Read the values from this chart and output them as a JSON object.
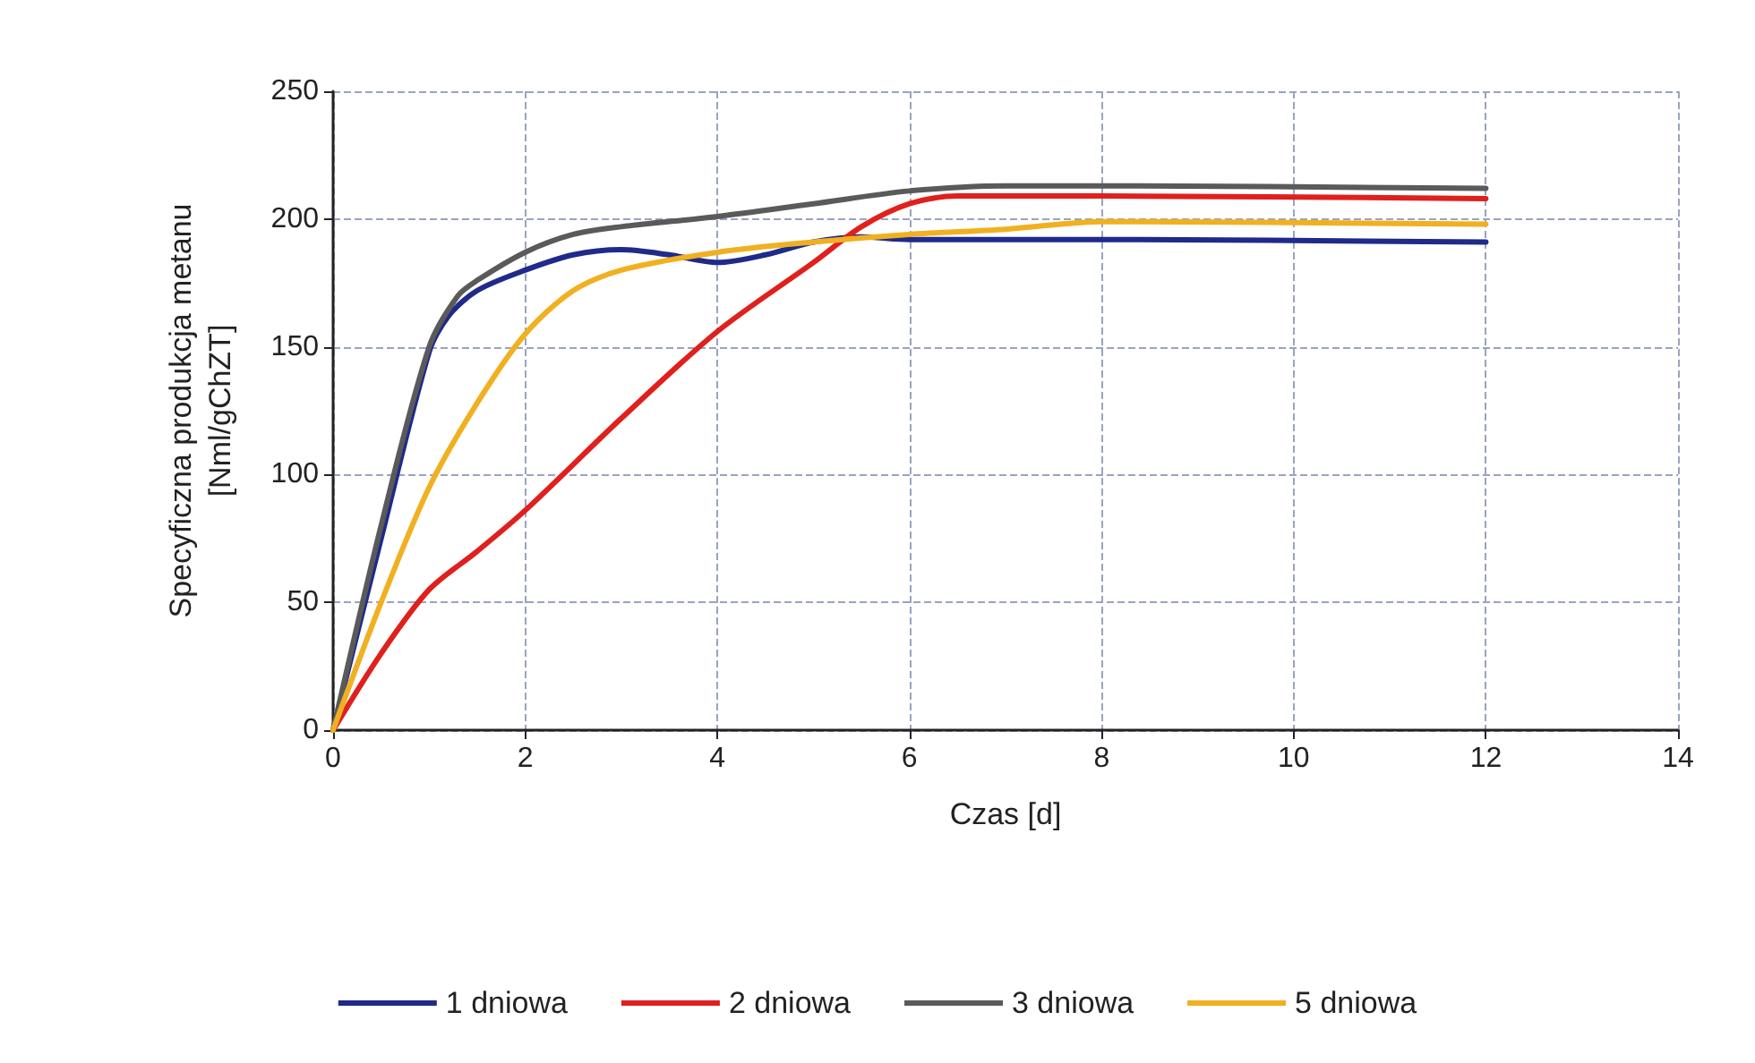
{
  "chart_data": {
    "type": "line",
    "xlabel": "Czas [d]",
    "ylabel": "Specyficzna produkcja metanu\n[Nml/gChZT]",
    "xlim": [
      0,
      14
    ],
    "xticks": [
      0,
      2,
      4,
      6,
      8,
      10,
      12,
      14
    ],
    "ylim": [
      0,
      250
    ],
    "yticks": [
      0,
      50,
      100,
      150,
      200,
      250
    ],
    "grid": true,
    "legend": "bottom",
    "marker": "none",
    "line_style": "solid",
    "series": [
      {
        "name": "1 dniowa",
        "color": "#1f2a8a",
        "x": [
          0,
          0.5,
          1,
          1.2,
          1.5,
          2,
          2.5,
          3,
          3.5,
          4,
          4.5,
          5,
          5.5,
          6,
          8,
          12
        ],
        "values": [
          0,
          75,
          148,
          162,
          172,
          180,
          186,
          188,
          186,
          183,
          186,
          191,
          193,
          192,
          192,
          191
        ]
      },
      {
        "name": "2 dniowa",
        "color": "#e0201c",
        "x": [
          0,
          0.5,
          1,
          1.5,
          2,
          3,
          4,
          5,
          5.5,
          6,
          6.5,
          7,
          8,
          12
        ],
        "values": [
          0,
          30,
          55,
          70,
          86,
          122,
          156,
          183,
          197,
          206,
          209,
          209,
          209,
          208
        ]
      },
      {
        "name": "3 dniowa",
        "color": "#5a5a5a",
        "x": [
          0,
          0.5,
          1,
          1.3,
          1.5,
          2,
          2.5,
          3,
          4,
          5,
          6,
          7,
          8,
          12
        ],
        "values": [
          0,
          80,
          150,
          170,
          176,
          187,
          194,
          197,
          201,
          206,
          211,
          213,
          213,
          212
        ]
      },
      {
        "name": "5 dniowa",
        "color": "#f0b020",
        "x": [
          0,
          0.5,
          1,
          1.5,
          2,
          2.5,
          3,
          4,
          5,
          6,
          7,
          8,
          12
        ],
        "values": [
          0,
          50,
          95,
          128,
          155,
          172,
          180,
          187,
          191,
          194,
          196,
          199,
          198
        ]
      }
    ]
  }
}
